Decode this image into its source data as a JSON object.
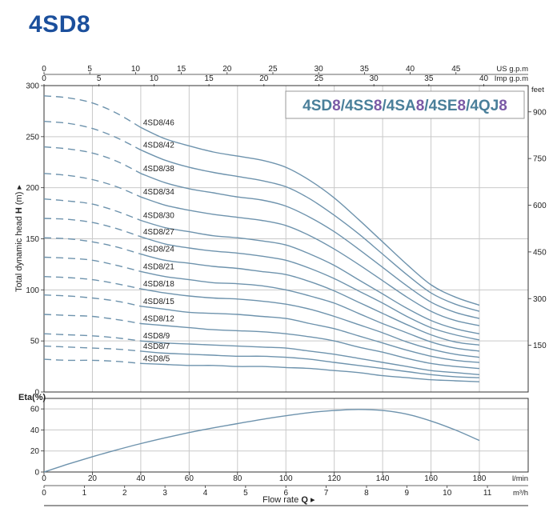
{
  "title": "4SD8",
  "series_banner": {
    "parts": [
      {
        "text": "4SD",
        "color": "#4a7f9a"
      },
      {
        "text": "8",
        "color": "#7b5aa6"
      },
      {
        "text": "/4SS",
        "color": "#4a7f9a"
      },
      {
        "text": "8",
        "color": "#7b5aa6"
      },
      {
        "text": "/4SA",
        "color": "#4a7f9a"
      },
      {
        "text": "8",
        "color": "#7b5aa6"
      },
      {
        "text": "/4SE",
        "color": "#4a7f9a"
      },
      {
        "text": "8",
        "color": "#7b5aa6"
      },
      {
        "text": "/4QJ",
        "color": "#4a7f9a"
      },
      {
        "text": "8",
        "color": "#7b5aa6"
      }
    ]
  },
  "colors": {
    "curve": "#6e93ad",
    "grid": "#c9c9c9",
    "axis": "#333333",
    "title": "#1b4f9c"
  },
  "chart_data": [
    {
      "type": "line",
      "name": "head-curves",
      "ylabel": "Total dynamic head",
      "ylabel_symbol": "H",
      "ylabel_unit": "(m)",
      "ylim": [
        0,
        300
      ],
      "yticks": [
        0,
        50,
        100,
        150,
        200,
        250,
        300
      ],
      "secondary_y": {
        "unit": "feet",
        "ticks": [
          150,
          300,
          450,
          600,
          750,
          900
        ],
        "factor": 3.28084
      },
      "top_axes": [
        {
          "unit": "US g.p.m",
          "ticks": [
            0,
            5,
            10,
            15,
            20,
            25,
            30,
            35,
            40,
            45
          ],
          "lpm_per_unit": 3.785
        },
        {
          "unit": "Imp g.p.m",
          "ticks": [
            0,
            5,
            10,
            15,
            20,
            25,
            30,
            35,
            40
          ],
          "lpm_per_unit": 4.546
        }
      ],
      "xlim": [
        0,
        200
      ],
      "x_dash_end": 40,
      "x": [
        0,
        10,
        20,
        30,
        40,
        50,
        60,
        70,
        80,
        90,
        100,
        110,
        120,
        130,
        140,
        150,
        160,
        170,
        180
      ],
      "series": [
        {
          "name": "4SD8/46",
          "values": [
            290,
            288,
            283,
            273,
            259,
            248,
            241,
            235,
            231,
            227,
            220,
            207,
            190,
            169,
            147,
            125,
            105,
            93,
            85
          ]
        },
        {
          "name": "4SD8/42",
          "values": [
            265,
            263,
            258,
            249,
            237,
            227,
            220,
            215,
            211,
            207,
            201,
            189,
            173,
            155,
            135,
            115,
            97,
            86,
            79
          ]
        },
        {
          "name": "4SD8/38",
          "values": [
            240,
            238,
            234,
            226,
            214,
            205,
            199,
            195,
            191,
            188,
            182,
            171,
            157,
            140,
            122,
            104,
            88,
            78,
            72
          ]
        },
        {
          "name": "4SD8/34",
          "values": [
            214,
            212,
            208,
            201,
            191,
            183,
            178,
            174,
            171,
            168,
            163,
            153,
            140,
            125,
            109,
            93,
            79,
            70,
            65
          ]
        },
        {
          "name": "4SD8/30",
          "values": [
            189,
            187,
            184,
            177,
            168,
            161,
            157,
            153,
            151,
            148,
            144,
            135,
            124,
            110,
            96,
            82,
            70,
            62,
            57
          ]
        },
        {
          "name": "4SD8/27",
          "values": [
            170,
            169,
            166,
            160,
            152,
            145,
            141,
            138,
            136,
            133,
            129,
            121,
            111,
            99,
            87,
            74,
            63,
            56,
            51
          ]
        },
        {
          "name": "4SD8/24",
          "values": [
            151,
            150,
            147,
            142,
            135,
            129,
            126,
            123,
            121,
            118,
            115,
            108,
            99,
            88,
            77,
            66,
            56,
            49,
            46
          ]
        },
        {
          "name": "4SD8/21",
          "values": [
            132,
            131,
            129,
            124,
            118,
            113,
            110,
            107,
            106,
            104,
            100,
            94,
            87,
            77,
            67,
            58,
            49,
            43,
            40
          ]
        },
        {
          "name": "4SD8/18",
          "values": [
            113,
            112,
            110,
            106,
            101,
            97,
            94,
            92,
            91,
            89,
            86,
            81,
            74,
            66,
            58,
            49,
            42,
            37,
            34
          ]
        },
        {
          "name": "4SD8/15",
          "values": [
            95,
            94,
            92,
            89,
            84,
            81,
            78,
            77,
            76,
            74,
            72,
            67,
            62,
            55,
            48,
            41,
            35,
            31,
            29
          ]
        },
        {
          "name": "4SD8/12",
          "values": [
            76,
            75,
            74,
            71,
            67,
            65,
            63,
            61,
            60,
            59,
            57,
            54,
            50,
            44,
            39,
            33,
            28,
            25,
            23
          ]
        },
        {
          "name": "4SD8/9",
          "values": [
            57,
            56,
            55,
            53,
            50,
            48,
            47,
            46,
            45,
            44,
            43,
            40,
            37,
            33,
            29,
            25,
            21,
            19,
            17
          ]
        },
        {
          "name": "4SD8/7",
          "values": [
            45,
            44,
            43,
            42,
            40,
            38,
            37,
            36,
            35,
            35,
            34,
            32,
            29,
            26,
            23,
            20,
            17,
            15,
            14
          ]
        },
        {
          "name": "4SD8/5",
          "values": [
            32,
            31,
            31,
            30,
            28,
            27,
            26,
            26,
            25,
            25,
            24,
            23,
            21,
            19,
            16,
            14,
            12,
            11,
            10
          ]
        }
      ]
    },
    {
      "type": "line",
      "name": "efficiency",
      "ylabel": "Eta(%)",
      "ylim": [
        0,
        70
      ],
      "yticks": [
        0,
        20,
        40,
        60
      ],
      "x": [
        0,
        10,
        20,
        30,
        40,
        50,
        60,
        70,
        80,
        90,
        100,
        110,
        120,
        130,
        140,
        150,
        160,
        170,
        180
      ],
      "values": [
        0,
        7.5,
        14.5,
        21,
        27,
        32.5,
        37.5,
        42,
        46,
        50,
        53.5,
        56.5,
        58.5,
        59.5,
        58.5,
        55,
        48.5,
        40,
        30
      ]
    }
  ],
  "x_axes": {
    "primary": {
      "unit": "l/min",
      "ticks": [
        0,
        20,
        40,
        60,
        80,
        100,
        120,
        140,
        160,
        180
      ]
    },
    "secondary": {
      "unit": "m³/h",
      "ticks": [
        0,
        1,
        2,
        3,
        4,
        5,
        6,
        7,
        8,
        9,
        10,
        11
      ],
      "lpm_per_unit": 16.6667
    },
    "title": "Flow  rate",
    "symbol": "Q"
  }
}
